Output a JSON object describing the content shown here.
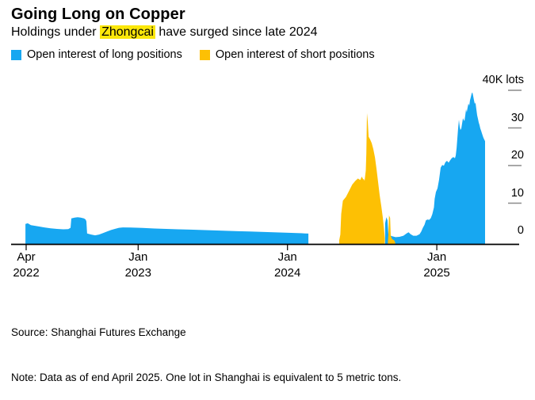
{
  "header": {
    "title": "Going Long on Copper",
    "subtitle_prefix": "Holdings under ",
    "subtitle_highlight": "Zhongcai",
    "subtitle_suffix": " have surged since late 2024",
    "highlight_color": "#fbe70a"
  },
  "legend": {
    "items": [
      {
        "label": "Open interest of long positions",
        "color": "#17a7f1"
      },
      {
        "label": "Open interest of short positions",
        "color": "#fdc004"
      }
    ]
  },
  "footer": {
    "source": "Source: Shanghai Futures Exchange",
    "note": "Note: Data as of end April 2025. One lot in Shanghai is equivalent to 5 metric tons."
  },
  "chart_data": {
    "type": "area",
    "title": "Going Long on Copper",
    "x_unit": "months since Apr 2022 (0 = Apr 2022)",
    "y_unit": "thousand lots",
    "ylim": [
      0,
      40
    ],
    "axis_color": "#000000",
    "tick_dash_color": "#8a8a8a",
    "yticks": [
      {
        "value": 0,
        "label": "0"
      },
      {
        "value": 10,
        "label": "10"
      },
      {
        "value": 20,
        "label": "20"
      },
      {
        "value": 30,
        "label": "30"
      },
      {
        "value": 40,
        "label": "40K lots"
      }
    ],
    "xticks": [
      {
        "month": 0,
        "line1": "Apr",
        "line2": "2022"
      },
      {
        "month": 9,
        "line1": "Jan",
        "line2": "2023"
      },
      {
        "month": 21,
        "line1": "Jan",
        "line2": "2024"
      },
      {
        "month": 33,
        "line1": "Jan",
        "line2": "2025"
      }
    ],
    "series": [
      {
        "name": "Open interest of long positions",
        "color": "#17a7f1",
        "points_format": "[month, thousand_lots]",
        "segments": [
          [
            [
              -0.06,
              5.3
            ],
            [
              0.13,
              5.5
            ],
            [
              0.38,
              5.0
            ],
            [
              0.96,
              4.7
            ],
            [
              1.46,
              4.4
            ],
            [
              1.97,
              4.15
            ],
            [
              2.48,
              4.0
            ],
            [
              2.99,
              3.9
            ],
            [
              3.38,
              3.95
            ],
            [
              3.57,
              4.3
            ],
            [
              3.63,
              6.8
            ],
            [
              3.89,
              7.0
            ],
            [
              4.14,
              7.1
            ],
            [
              4.39,
              7.0
            ],
            [
              4.65,
              6.8
            ],
            [
              4.78,
              6.5
            ],
            [
              4.84,
              6.0
            ],
            [
              4.9,
              2.8
            ],
            [
              5.22,
              2.5
            ],
            [
              5.54,
              2.3
            ],
            [
              5.86,
              2.5
            ],
            [
              6.18,
              2.9
            ],
            [
              6.5,
              3.3
            ],
            [
              6.82,
              3.7
            ],
            [
              7.13,
              4.0
            ],
            [
              7.45,
              4.3
            ],
            [
              7.77,
              4.4
            ],
            [
              8.41,
              4.35
            ],
            [
              9.36,
              4.25
            ],
            [
              10.32,
              4.1
            ],
            [
              11.27,
              4.0
            ],
            [
              12.23,
              3.9
            ],
            [
              13.18,
              3.8
            ],
            [
              14.14,
              3.7
            ],
            [
              15.1,
              3.6
            ],
            [
              16.05,
              3.5
            ],
            [
              17.01,
              3.4
            ],
            [
              17.96,
              3.3
            ],
            [
              18.92,
              3.2
            ],
            [
              19.87,
              3.1
            ],
            [
              20.83,
              3.0
            ],
            [
              21.78,
              2.9
            ],
            [
              22.42,
              2.8
            ],
            [
              22.68,
              2.75
            ]
          ],
          [
            [
              28.85,
              5.5
            ],
            [
              28.95,
              7.1
            ],
            [
              29.04,
              6.3
            ],
            [
              29.11,
              2.5
            ],
            [
              29.36,
              2.1
            ],
            [
              29.68,
              1.8
            ],
            [
              30.0,
              1.9
            ],
            [
              30.32,
              2.2
            ],
            [
              30.57,
              2.8
            ],
            [
              30.73,
              3.1
            ],
            [
              30.89,
              2.6
            ],
            [
              31.11,
              2.2
            ],
            [
              31.37,
              2.2
            ],
            [
              31.62,
              2.6
            ],
            [
              31.75,
              3.3
            ],
            [
              31.88,
              4.3
            ],
            [
              32.01,
              5.1
            ],
            [
              32.13,
              6.3
            ],
            [
              32.26,
              6.5
            ],
            [
              32.39,
              6.4
            ],
            [
              32.52,
              6.9
            ],
            [
              32.64,
              7.9
            ],
            [
              32.77,
              9.7
            ],
            [
              32.83,
              12.0
            ],
            [
              32.93,
              13.8
            ],
            [
              33.06,
              14.8
            ],
            [
              33.18,
              17.0
            ],
            [
              33.31,
              20.3
            ],
            [
              33.44,
              21.0
            ],
            [
              33.57,
              20.8
            ],
            [
              33.69,
              21.7
            ],
            [
              33.82,
              22.1
            ],
            [
              33.95,
              21.6
            ],
            [
              34.08,
              22.3
            ],
            [
              34.2,
              22.8
            ],
            [
              34.33,
              23.1
            ],
            [
              34.46,
              22.8
            ],
            [
              34.52,
              23.5
            ],
            [
              34.59,
              25.5
            ],
            [
              34.65,
              28.0
            ],
            [
              34.71,
              30.5
            ],
            [
              34.78,
              33.0
            ],
            [
              34.84,
              31.2
            ],
            [
              34.9,
              30.3
            ],
            [
              34.97,
              30.7
            ],
            [
              35.03,
              32.0
            ],
            [
              35.1,
              33.4
            ],
            [
              35.16,
              33.0
            ],
            [
              35.22,
              32.7
            ],
            [
              35.29,
              34.3
            ],
            [
              35.35,
              35.8
            ],
            [
              35.41,
              35.0
            ],
            [
              35.48,
              36.3
            ],
            [
              35.54,
              37.3
            ],
            [
              35.61,
              36.8
            ],
            [
              35.67,
              38.2
            ],
            [
              35.73,
              39.0
            ],
            [
              35.8,
              40.0
            ],
            [
              35.86,
              40.3
            ],
            [
              35.92,
              39.4
            ],
            [
              35.99,
              38.2
            ],
            [
              36.05,
              37.2
            ],
            [
              36.11,
              37.6
            ],
            [
              36.18,
              35.8
            ],
            [
              36.24,
              34.2
            ],
            [
              36.31,
              33.2
            ],
            [
              36.37,
              32.3
            ],
            [
              36.43,
              31.6
            ],
            [
              36.5,
              30.7
            ],
            [
              36.56,
              30.1
            ],
            [
              36.62,
              29.5
            ],
            [
              36.69,
              28.8
            ],
            [
              36.75,
              28.2
            ],
            [
              36.82,
              27.7
            ],
            [
              36.88,
              27.3
            ]
          ]
        ]
      },
      {
        "name": "Open interest of short positions",
        "color": "#fdc004",
        "points_format": "[month, thousand_lots]",
        "segments": [
          [
            [
              25.16,
              1.0
            ],
            [
              25.25,
              2.5
            ],
            [
              25.32,
              8.0
            ],
            [
              25.45,
              11.5
            ],
            [
              25.7,
              12.5
            ],
            [
              25.96,
              14.2
            ],
            [
              26.21,
              15.8
            ],
            [
              26.46,
              16.8
            ],
            [
              26.66,
              17.4
            ],
            [
              26.85,
              17.0
            ],
            [
              26.97,
              17.9
            ],
            [
              27.1,
              17.1
            ],
            [
              27.13,
              17.3
            ],
            [
              27.2,
              16.8
            ],
            [
              27.29,
              19.5
            ],
            [
              27.34,
              24.0
            ],
            [
              27.39,
              34.8
            ],
            [
              27.45,
              32.5
            ],
            [
              27.52,
              28.5
            ],
            [
              27.64,
              27.8
            ],
            [
              27.77,
              26.8
            ],
            [
              27.9,
              25.2
            ],
            [
              28.03,
              23.0
            ],
            [
              28.15,
              20.0
            ],
            [
              28.28,
              16.5
            ],
            [
              28.41,
              13.0
            ],
            [
              28.54,
              10.0
            ],
            [
              28.66,
              7.0
            ],
            [
              28.76,
              4.0
            ],
            [
              28.82,
              1.5
            ]
          ],
          [
            [
              29.07,
              0.5
            ],
            [
              29.11,
              2.5
            ],
            [
              29.16,
              7.6
            ],
            [
              29.25,
              6.9
            ],
            [
              29.3,
              2.2
            ],
            [
              29.4,
              1.3
            ],
            [
              29.6,
              0.9
            ],
            [
              29.66,
              0.3
            ]
          ]
        ]
      }
    ]
  }
}
